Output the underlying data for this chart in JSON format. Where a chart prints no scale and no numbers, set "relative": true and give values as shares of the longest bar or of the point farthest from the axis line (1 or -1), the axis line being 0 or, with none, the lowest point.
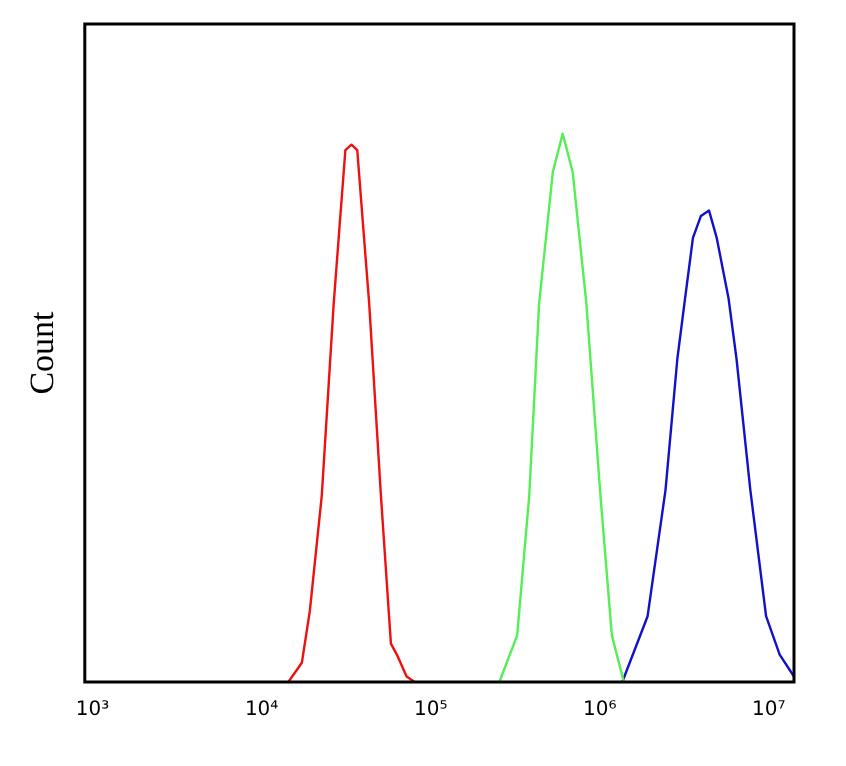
{
  "chart_data": {
    "type": "line",
    "ylabel": "Count",
    "relative": true,
    "log": "x",
    "grid": false,
    "legend": false,
    "marker": "none",
    "xlim": [
      900,
      14100000
    ],
    "xticks": [
      {
        "value": 1000,
        "label": "10³"
      },
      {
        "value": 10000,
        "label": "10⁴"
      },
      {
        "value": 100000,
        "label": "10⁵"
      },
      {
        "value": 1000000,
        "label": "10⁶"
      },
      {
        "value": 10000000,
        "label": "10⁷"
      }
    ],
    "series": [
      {
        "color": "#ee1111",
        "x": [
          14400,
          17300,
          19300,
          22700,
          26700,
          28900,
          31300,
          34000,
          36800,
          39900,
          43300,
          50800,
          58200,
          63100,
          72100,
          80400
        ],
        "values": [
          0,
          0.035,
          0.13,
          0.34,
          0.69,
          0.83,
          0.97,
          0.98,
          0.97,
          0.83,
          0.69,
          0.34,
          0.07,
          0.05,
          0.01,
          0
        ]
      },
      {
        "color": "#55ee55",
        "x": [
          255000,
          325000,
          383000,
          438000,
          528000,
          604000,
          692000,
          834000,
          1010000,
          1180000,
          1390000
        ],
        "values": [
          0,
          0.085,
          0.34,
          0.69,
          0.93,
          1,
          0.93,
          0.69,
          0.34,
          0.085,
          0
        ]
      },
      {
        "color": "#1111cc",
        "x": [
          1360000,
          1920000,
          2450000,
          2880000,
          3200000,
          3560000,
          3970000,
          4430000,
          4920000,
          5780000,
          6440000,
          7780000,
          9640000,
          11600000,
          14100000
        ],
        "values": [
          0,
          0.12,
          0.35,
          0.59,
          0.7,
          0.81,
          0.85,
          0.86,
          0.81,
          0.7,
          0.59,
          0.35,
          0.12,
          0.05,
          0.01
        ]
      }
    ]
  }
}
